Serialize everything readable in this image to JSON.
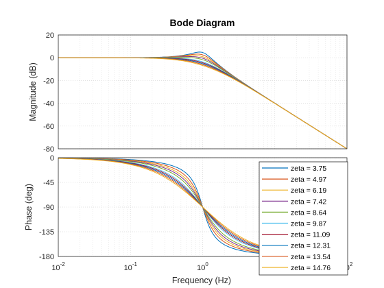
{
  "chart_data": {
    "type": "line",
    "title": "Bode Diagram",
    "xlabel": "Frequency  (Hz)",
    "x_scale": "log",
    "xlim": [
      0.01,
      100
    ],
    "x_ticks": [
      {
        "base": "10",
        "exp": "-2"
      },
      {
        "base": "10",
        "exp": "-1"
      },
      {
        "base": "10",
        "exp": "0"
      },
      {
        "base": "10",
        "exp": "1"
      },
      {
        "base": "10",
        "exp": "2"
      }
    ],
    "grid": true,
    "magnitude_axes": {
      "ylabel": "Magnitude (dB)",
      "ylim": [
        -80,
        20
      ],
      "yticks": [
        "20",
        "0",
        "-20",
        "-40",
        "-60",
        "-80"
      ]
    },
    "phase_axes": {
      "ylabel": "Phase (deg)",
      "ylim": [
        -180,
        0
      ],
      "yticks": [
        "0",
        "-45",
        "-90",
        "-135",
        "-180"
      ]
    },
    "legend_placement": "bottom-right of phase plot",
    "series": [
      {
        "name": "zeta = 3.75",
        "color": "#0072BD",
        "peak_db": 5.0
      },
      {
        "name": "zeta = 4.97",
        "color": "#D95319",
        "peak_db": 3.2
      },
      {
        "name": "zeta = 6.19",
        "color": "#EDB120",
        "peak_db": 1.9
      },
      {
        "name": "zeta = 7.42",
        "color": "#7E2F8E",
        "peak_db": 1.0
      },
      {
        "name": "zeta = 8.64",
        "color": "#77AC30",
        "peak_db": 0.3
      },
      {
        "name": "zeta = 9.87",
        "color": "#4DBEEE",
        "peak_db": -0.6
      },
      {
        "name": "zeta = 11.09",
        "color": "#A2142F",
        "peak_db": -1.4
      },
      {
        "name": "zeta = 12.31",
        "color": "#0072BD",
        "peak_db": -2.2
      },
      {
        "name": "zeta = 13.54",
        "color": "#D95319",
        "peak_db": -3.0
      },
      {
        "name": "zeta = 14.76",
        "color": "#EDB120",
        "peak_db": -3.8
      }
    ]
  }
}
